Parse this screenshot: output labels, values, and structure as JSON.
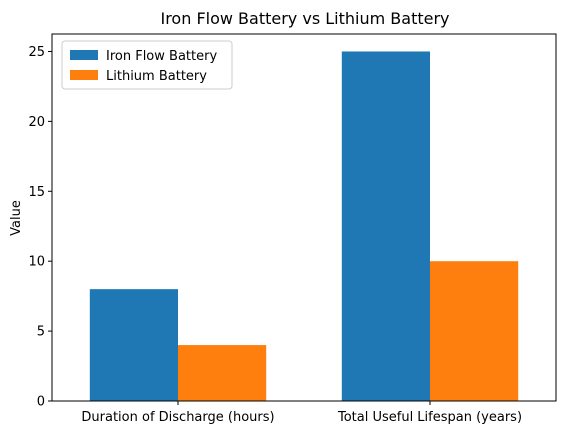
{
  "chart_data": {
    "type": "bar",
    "title": "Iron Flow Battery vs Lithium Battery",
    "xlabel": "",
    "ylabel": "Value",
    "categories": [
      "Duration of Discharge (hours)",
      "Total Useful Lifespan (years)"
    ],
    "series": [
      {
        "name": "Iron Flow Battery",
        "values": [
          8,
          25
        ],
        "color": "#1f77b4"
      },
      {
        "name": "Lithium Battery",
        "values": [
          4,
          10
        ],
        "color": "#ff7f0e"
      }
    ],
    "ylim": [
      0,
      26.25
    ],
    "yticks": [
      0,
      5,
      10,
      15,
      20,
      25
    ],
    "grid": false,
    "legend_position": "top-left"
  }
}
